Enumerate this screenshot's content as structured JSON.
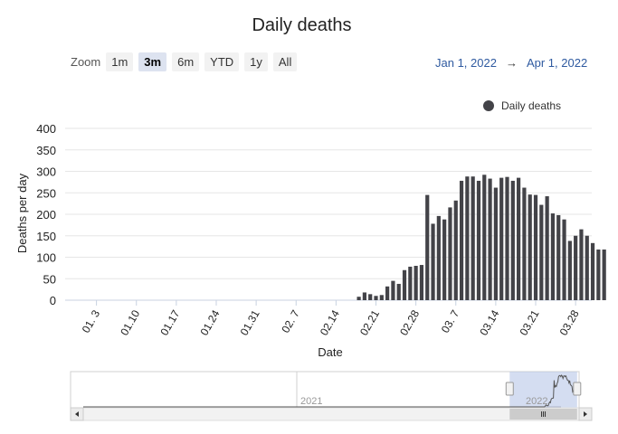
{
  "chart_data": {
    "type": "bar",
    "title": "Daily deaths",
    "xlabel": "Date",
    "ylabel": "Deaths per day",
    "ylim": [
      0,
      400
    ],
    "yticks": [
      0,
      50,
      100,
      150,
      200,
      250,
      300,
      350,
      400
    ],
    "xtick_labels": [
      "01. 3",
      "01.10",
      "01.17",
      "01.24",
      "01.31",
      "02. 7",
      "02.14",
      "02.21",
      "02.28",
      "03. 7",
      "03.14",
      "03.21",
      "03.28"
    ],
    "grid": true,
    "legend_position": "top-right",
    "bar_color": "#434348",
    "start_date": "2022-01-01",
    "series": [
      {
        "name": "Daily deaths",
        "values": [
          0,
          0,
          0,
          0,
          0,
          0,
          0,
          0,
          0,
          0,
          0,
          0,
          0,
          0,
          0,
          0,
          0,
          0,
          0,
          0,
          0,
          0,
          0,
          0,
          0,
          0,
          0,
          0,
          0,
          0,
          0,
          0,
          0,
          0,
          0,
          0,
          0,
          0,
          0,
          0,
          0,
          0,
          0,
          0,
          0,
          0,
          0,
          0,
          8,
          18,
          14,
          10,
          12,
          32,
          45,
          38,
          70,
          78,
          80,
          82,
          245,
          178,
          196,
          188,
          216,
          232,
          278,
          288,
          288,
          278,
          292,
          283,
          262,
          285,
          287,
          278,
          285,
          262,
          246,
          245,
          222,
          242,
          202,
          198,
          188,
          138,
          150,
          165,
          150,
          133,
          118,
          118
        ]
      }
    ]
  },
  "controls": {
    "zoom_label": "Zoom",
    "buttons": [
      "1m",
      "3m",
      "6m",
      "YTD",
      "1y",
      "All"
    ],
    "active": "3m",
    "range_from": "Jan 1, 2022",
    "range_arrow": "→",
    "range_to": "Apr 1, 2022"
  },
  "navigator": {
    "year_labels": [
      "2021",
      "2022"
    ],
    "selected_from": 0.86,
    "selected_to": 0.996
  }
}
